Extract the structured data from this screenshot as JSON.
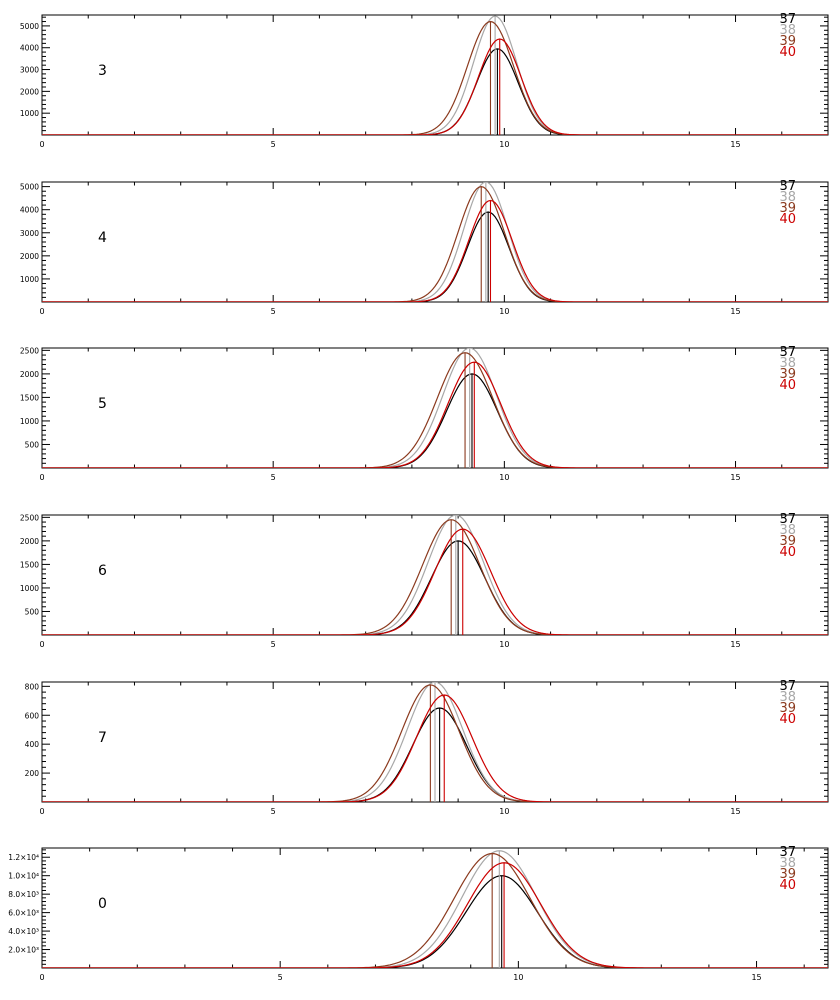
{
  "legend_colors": {
    "37": "#000000",
    "38": "#a8a8a8",
    "39": "#8b3a1e",
    "40": "#cc0000"
  },
  "chart_data": [
    {
      "type": "line",
      "panel_label": "3",
      "xlim": [
        0,
        17
      ],
      "ylim": [
        0,
        5500
      ],
      "x_ticks": [
        0,
        5,
        10,
        15
      ],
      "x_tick_labels": [
        "0",
        "5",
        "10",
        "15"
      ],
      "y_ticks": [
        1000,
        2000,
        3000,
        4000,
        5000
      ],
      "y_tick_labels": [
        "1000",
        "2000",
        "3000",
        "4000",
        "5000"
      ],
      "grid": false,
      "legend_position": "top-right",
      "series": [
        {
          "name": "37",
          "color": "#000000",
          "mean": 9.85,
          "sigma": 0.45,
          "peak": 3950
        },
        {
          "name": "38",
          "color": "#a8a8a8",
          "mean": 9.8,
          "sigma": 0.47,
          "peak": 5450
        },
        {
          "name": "39",
          "color": "#8b3a1e",
          "mean": 9.7,
          "sigma": 0.5,
          "peak": 5200
        },
        {
          "name": "40",
          "color": "#cc0000",
          "mean": 9.9,
          "sigma": 0.46,
          "peak": 4400
        }
      ]
    },
    {
      "type": "line",
      "panel_label": "4",
      "xlim": [
        0,
        17
      ],
      "ylim": [
        0,
        5200
      ],
      "x_ticks": [
        0,
        5,
        10,
        15
      ],
      "x_tick_labels": [
        "0",
        "5",
        "10",
        "15"
      ],
      "y_ticks": [
        1000,
        2000,
        3000,
        4000,
        5000
      ],
      "y_tick_labels": [
        "1000",
        "2000",
        "3000",
        "4000",
        "5000"
      ],
      "grid": false,
      "legend_position": "top-right",
      "series": [
        {
          "name": "37",
          "color": "#000000",
          "mean": 9.65,
          "sigma": 0.45,
          "peak": 3900
        },
        {
          "name": "38",
          "color": "#a8a8a8",
          "mean": 9.6,
          "sigma": 0.48,
          "peak": 5200
        },
        {
          "name": "39",
          "color": "#8b3a1e",
          "mean": 9.5,
          "sigma": 0.5,
          "peak": 5000
        },
        {
          "name": "40",
          "color": "#cc0000",
          "mean": 9.7,
          "sigma": 0.47,
          "peak": 4400
        }
      ]
    },
    {
      "type": "line",
      "panel_label": "5",
      "xlim": [
        0,
        17
      ],
      "ylim": [
        0,
        2550
      ],
      "x_ticks": [
        0,
        5,
        10,
        15
      ],
      "x_tick_labels": [
        "0",
        "5",
        "10",
        "15"
      ],
      "y_ticks": [
        500,
        1000,
        1500,
        2000,
        2500
      ],
      "y_tick_labels": [
        "500",
        "1000",
        "1500",
        "2000",
        "2500"
      ],
      "grid": false,
      "legend_position": "top-right",
      "series": [
        {
          "name": "37",
          "color": "#000000",
          "mean": 9.3,
          "sigma": 0.55,
          "peak": 2000
        },
        {
          "name": "38",
          "color": "#a8a8a8",
          "mean": 9.25,
          "sigma": 0.58,
          "peak": 2550
        },
        {
          "name": "39",
          "color": "#8b3a1e",
          "mean": 9.15,
          "sigma": 0.6,
          "peak": 2450
        },
        {
          "name": "40",
          "color": "#cc0000",
          "mean": 9.35,
          "sigma": 0.57,
          "peak": 2250
        }
      ]
    },
    {
      "type": "line",
      "panel_label": "6",
      "xlim": [
        0,
        17
      ],
      "ylim": [
        0,
        2550
      ],
      "x_ticks": [
        0,
        5,
        10,
        15
      ],
      "x_tick_labels": [
        "0",
        "5",
        "10",
        "15"
      ],
      "y_ticks": [
        500,
        1000,
        1500,
        2000,
        2500
      ],
      "y_tick_labels": [
        "500",
        "1000",
        "1500",
        "2000",
        "2500"
      ],
      "grid": false,
      "legend_position": "top-right",
      "series": [
        {
          "name": "37",
          "color": "#000000",
          "mean": 9.0,
          "sigma": 0.58,
          "peak": 2000
        },
        {
          "name": "38",
          "color": "#a8a8a8",
          "mean": 8.95,
          "sigma": 0.6,
          "peak": 2550
        },
        {
          "name": "39",
          "color": "#8b3a1e",
          "mean": 8.85,
          "sigma": 0.62,
          "peak": 2450
        },
        {
          "name": "40",
          "color": "#cc0000",
          "mean": 9.1,
          "sigma": 0.6,
          "peak": 2250
        }
      ]
    },
    {
      "type": "line",
      "panel_label": "7",
      "xlim": [
        0,
        17
      ],
      "ylim": [
        0,
        830
      ],
      "x_ticks": [
        0,
        5,
        10,
        15
      ],
      "x_tick_labels": [
        "0",
        "5",
        "10",
        "15"
      ],
      "y_ticks": [
        200,
        400,
        600,
        800
      ],
      "y_tick_labels": [
        "200",
        "400",
        "600",
        "800"
      ],
      "grid": false,
      "legend_position": "top-right",
      "series": [
        {
          "name": "37",
          "color": "#000000",
          "mean": 8.6,
          "sigma": 0.58,
          "peak": 650
        },
        {
          "name": "38",
          "color": "#a8a8a8",
          "mean": 8.5,
          "sigma": 0.6,
          "peak": 830
        },
        {
          "name": "39",
          "color": "#8b3a1e",
          "mean": 8.4,
          "sigma": 0.62,
          "peak": 810
        },
        {
          "name": "40",
          "color": "#cc0000",
          "mean": 8.7,
          "sigma": 0.6,
          "peak": 740
        }
      ]
    },
    {
      "type": "line",
      "panel_label": "0",
      "xlim": [
        0,
        16.5
      ],
      "ylim": [
        0,
        13000
      ],
      "x_ticks": [
        0,
        5,
        10,
        15
      ],
      "x_tick_labels": [
        "0",
        "5",
        "10",
        "15"
      ],
      "y_ticks": [
        2000,
        4000,
        6000,
        8000,
        10000,
        12000
      ],
      "y_tick_labels": [
        "2.0×10³",
        "4.0×10³",
        "6.0×10³",
        "8.0×10³",
        "1.0×10⁴",
        "1.2×10⁴"
      ],
      "grid": false,
      "legend_position": "top-right",
      "series": [
        {
          "name": "37",
          "color": "#000000",
          "mean": 9.65,
          "sigma": 0.75,
          "peak": 10000
        },
        {
          "name": "38",
          "color": "#a8a8a8",
          "mean": 9.6,
          "sigma": 0.78,
          "peak": 12700
        },
        {
          "name": "39",
          "color": "#8b3a1e",
          "mean": 9.45,
          "sigma": 0.8,
          "peak": 12400
        },
        {
          "name": "40",
          "color": "#cc0000",
          "mean": 9.7,
          "sigma": 0.77,
          "peak": 11400
        }
      ]
    }
  ]
}
